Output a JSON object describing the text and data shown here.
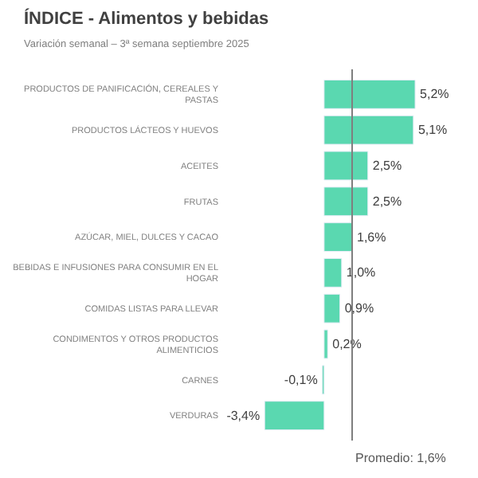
{
  "chart_data": {
    "type": "bar",
    "orientation": "horizontal",
    "title": "ÍNDICE - Alimentos y bebidas",
    "subtitle": "Variación semanal – 3ª semana septiembre 2025",
    "categories": [
      "PRODUCTOS DE PANIFICACIÓN, CEREALES Y PASTAS",
      "PRODUCTOS LÁCTEOS Y HUEVOS",
      "ACEITES",
      "FRUTAS",
      "AZÚCAR, MIEL, DULCES Y CACAO",
      "BEBIDAS E INFUSIONES PARA CONSUMIR EN EL HOGAR",
      "COMIDAS LISTAS PARA LLEVAR",
      "CONDIMENTOS Y OTROS PRODUCTOS ALIMENTICIOS",
      "CARNES",
      "VERDURAS"
    ],
    "values": [
      5.2,
      5.1,
      2.5,
      2.5,
      1.6,
      1.0,
      0.9,
      0.2,
      -0.1,
      -3.4
    ],
    "value_labels": [
      "5,2%",
      "5,1%",
      "2,5%",
      "2,5%",
      "1,6%",
      "1,0%",
      "0,9%",
      "0,2%",
      "-0,1%",
      "-3,4%"
    ],
    "color": "#5ad8b0",
    "ref_lines": [
      {
        "axis": "x",
        "value": 1.6,
        "label": "Promedio: 1,6%",
        "color": "#7f7f7f"
      }
    ],
    "legend": false
  }
}
